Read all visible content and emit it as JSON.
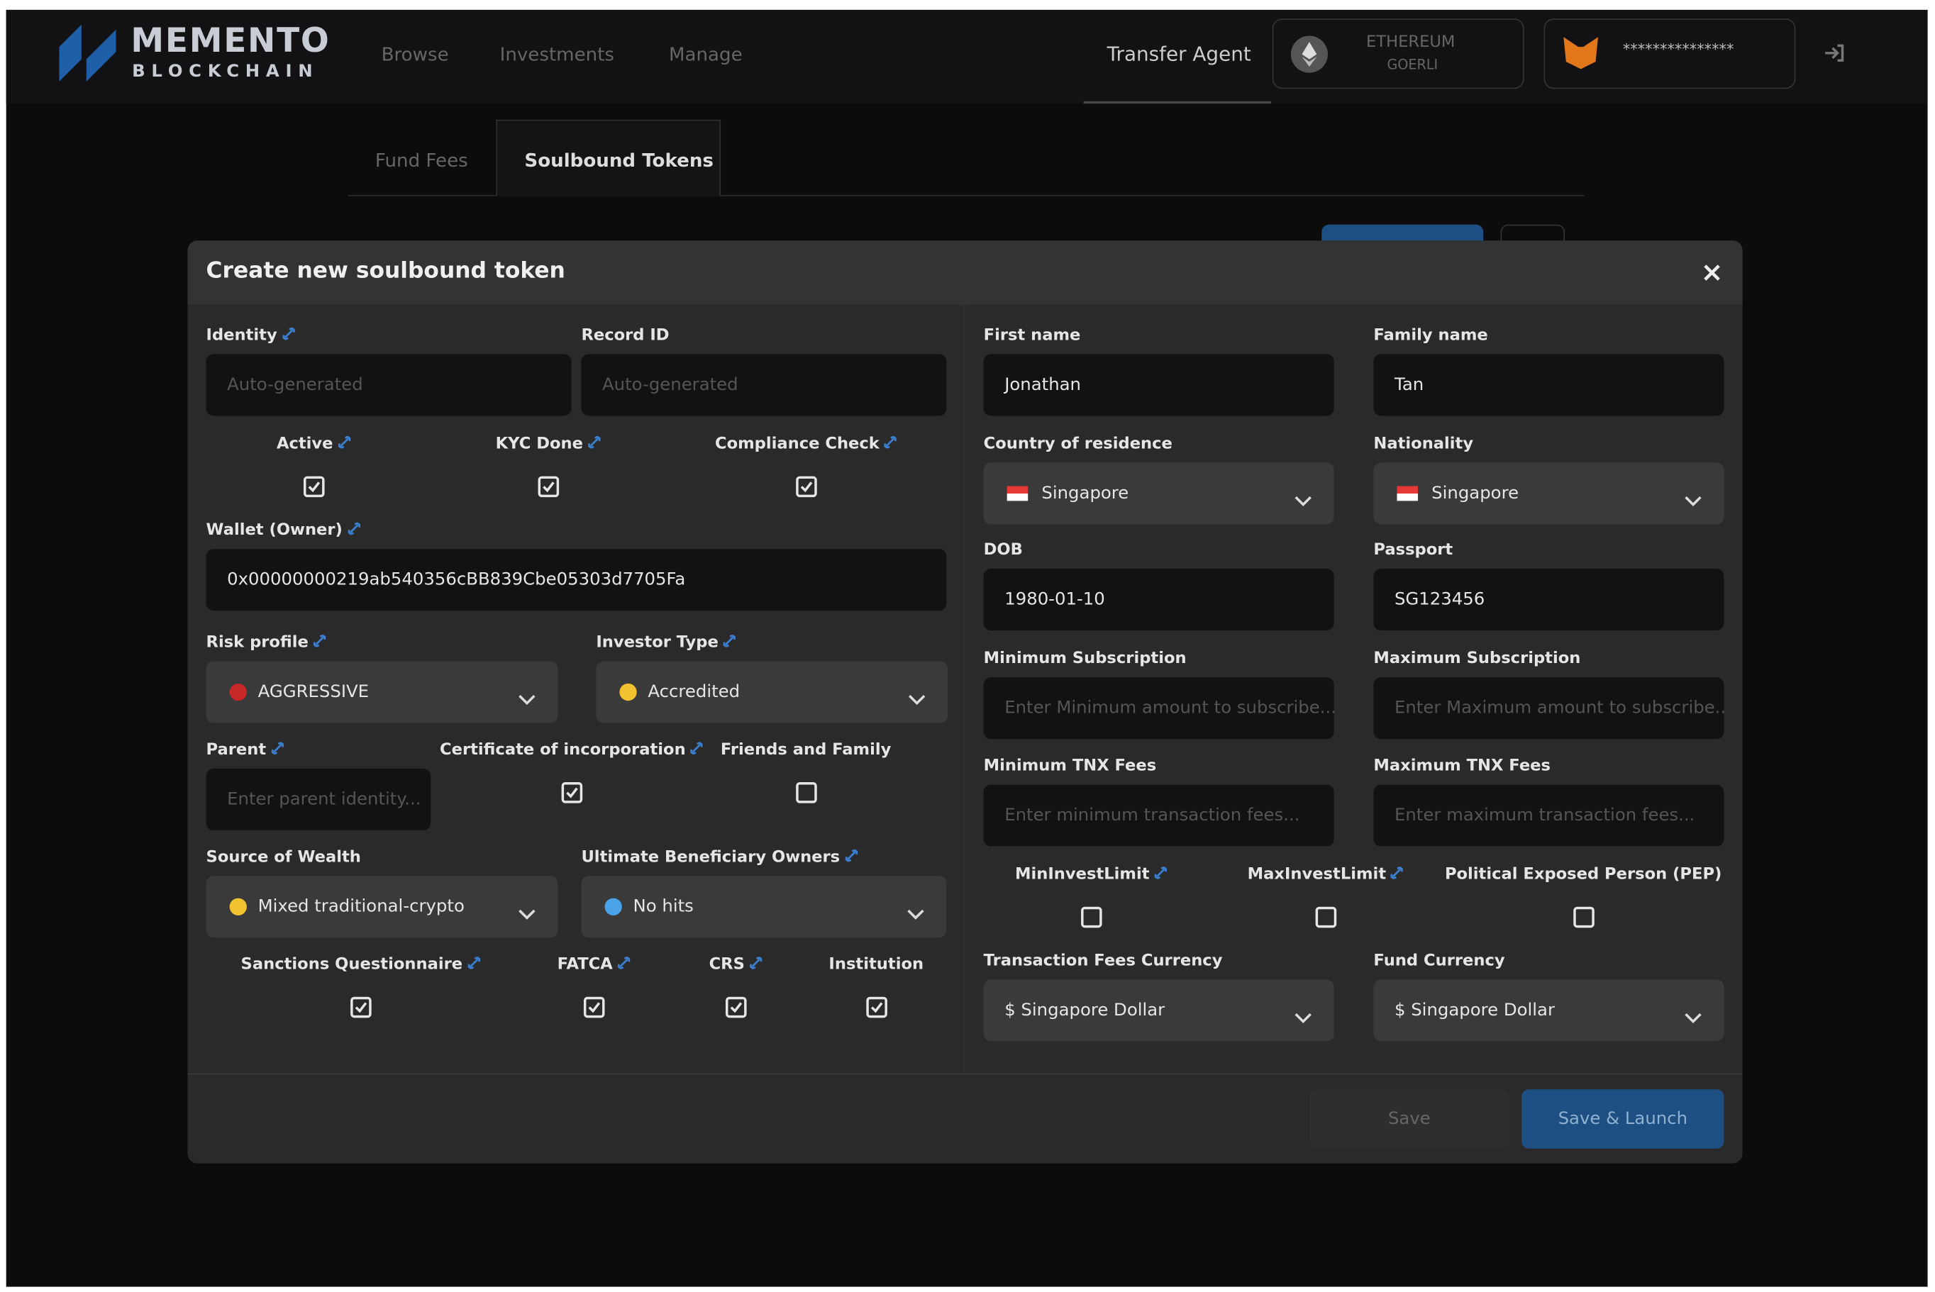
{
  "header": {
    "logo_top": "MEMENTO",
    "logo_bottom": "BLOCKCHAIN",
    "nav": [
      "Browse",
      "Investments",
      "Manage"
    ],
    "role": "Transfer Agent",
    "network": "ETHEREUM",
    "network_sub": "GOERLI",
    "wallet": "***************"
  },
  "tabs": [
    "Fund Fees",
    "Soulbound Tokens"
  ],
  "modal": {
    "title": "Create new soulbound token",
    "close": "×",
    "fields": [
      {
        "label": "Identity",
        "link": true,
        "kind": "input",
        "placeholder": "Auto-generated"
      },
      {
        "label": "Record ID",
        "link": false,
        "kind": "input",
        "placeholder": "Auto-generated"
      },
      {
        "label": "Active",
        "link": true,
        "kind": "checkbox",
        "checked": true
      },
      {
        "label": "KYC Done",
        "link": true,
        "kind": "checkbox",
        "checked": true
      },
      {
        "label": "Compliance Check",
        "link": true,
        "kind": "checkbox",
        "checked": true
      },
      {
        "label": "Wallet (Owner)",
        "link": true,
        "kind": "input",
        "value": "0x00000000219ab540356cBB839Cbe05303d7705Fa"
      },
      {
        "label": "Risk profile",
        "link": true,
        "kind": "select",
        "value": "AGGRESSIVE",
        "dot": "#c62828"
      },
      {
        "label": "Investor Type",
        "link": true,
        "kind": "select",
        "value": "Accredited",
        "dot": "#f2c230"
      },
      {
        "label": "Parent",
        "link": true,
        "kind": "input",
        "placeholder": "Enter parent identity..."
      },
      {
        "label": "Certificate of incorporation",
        "link": true,
        "kind": "checkbox",
        "checked": true
      },
      {
        "label": "Friends and Family",
        "link": false,
        "kind": "checkbox",
        "checked": false
      },
      {
        "label": "Source of Wealth",
        "link": false,
        "kind": "select",
        "value": "Mixed traditional-crypto",
        "dot": "#f2c230"
      },
      {
        "label": "Ultimate Beneficiary Owners",
        "link": true,
        "kind": "select",
        "value": "No hits",
        "dot": "#4aa3e8"
      },
      {
        "label": "Sanctions Questionnaire",
        "link": true,
        "kind": "checkbox",
        "checked": true
      },
      {
        "label": "FATCA",
        "link": true,
        "kind": "checkbox",
        "checked": true
      },
      {
        "label": "CRS",
        "link": true,
        "kind": "checkbox",
        "checked": true
      },
      {
        "label": "Institution",
        "link": false,
        "kind": "checkbox",
        "checked": true
      },
      {
        "label": "First name",
        "link": false,
        "kind": "input",
        "value": "Jonathan"
      },
      {
        "label": "Family name",
        "link": false,
        "kind": "input",
        "value": "Tan"
      },
      {
        "label": "Country of residence",
        "link": false,
        "kind": "select",
        "value": "Singapore",
        "flag": true
      },
      {
        "label": "Nationality",
        "link": false,
        "kind": "select",
        "value": "Singapore",
        "flag": true
      },
      {
        "label": "DOB",
        "link": false,
        "kind": "input",
        "value": "1980-01-10"
      },
      {
        "label": "Passport",
        "link": false,
        "kind": "input",
        "value": "SG123456"
      },
      {
        "label": "Minimum Subscription",
        "link": false,
        "kind": "input",
        "placeholder": "Enter Minimum amount to subscribe..."
      },
      {
        "label": "Maximum Subscription",
        "link": false,
        "kind": "input",
        "placeholder": "Enter Maximum amount to subscribe.."
      },
      {
        "label": "Minimum TNX Fees",
        "link": false,
        "kind": "input",
        "placeholder": "Enter minimum transaction fees..."
      },
      {
        "label": "Maximum TNX Fees",
        "link": false,
        "kind": "input",
        "placeholder": "Enter maximum transaction fees..."
      },
      {
        "label": "MinInvestLimit",
        "link": true,
        "kind": "checkbox",
        "checked": false
      },
      {
        "label": "MaxInvestLimit",
        "link": true,
        "kind": "checkbox",
        "checked": false
      },
      {
        "label": "Political Exposed Person (PEP)",
        "link": false,
        "kind": "checkbox",
        "checked": false
      },
      {
        "label": "Transaction Fees Currency",
        "link": false,
        "kind": "select",
        "value": "$ Singapore Dollar"
      },
      {
        "label": "Fund Currency",
        "link": false,
        "kind": "select",
        "value": "$ Singapore Dollar"
      }
    ],
    "buttons": [
      "Save",
      "Save & Launch"
    ]
  }
}
